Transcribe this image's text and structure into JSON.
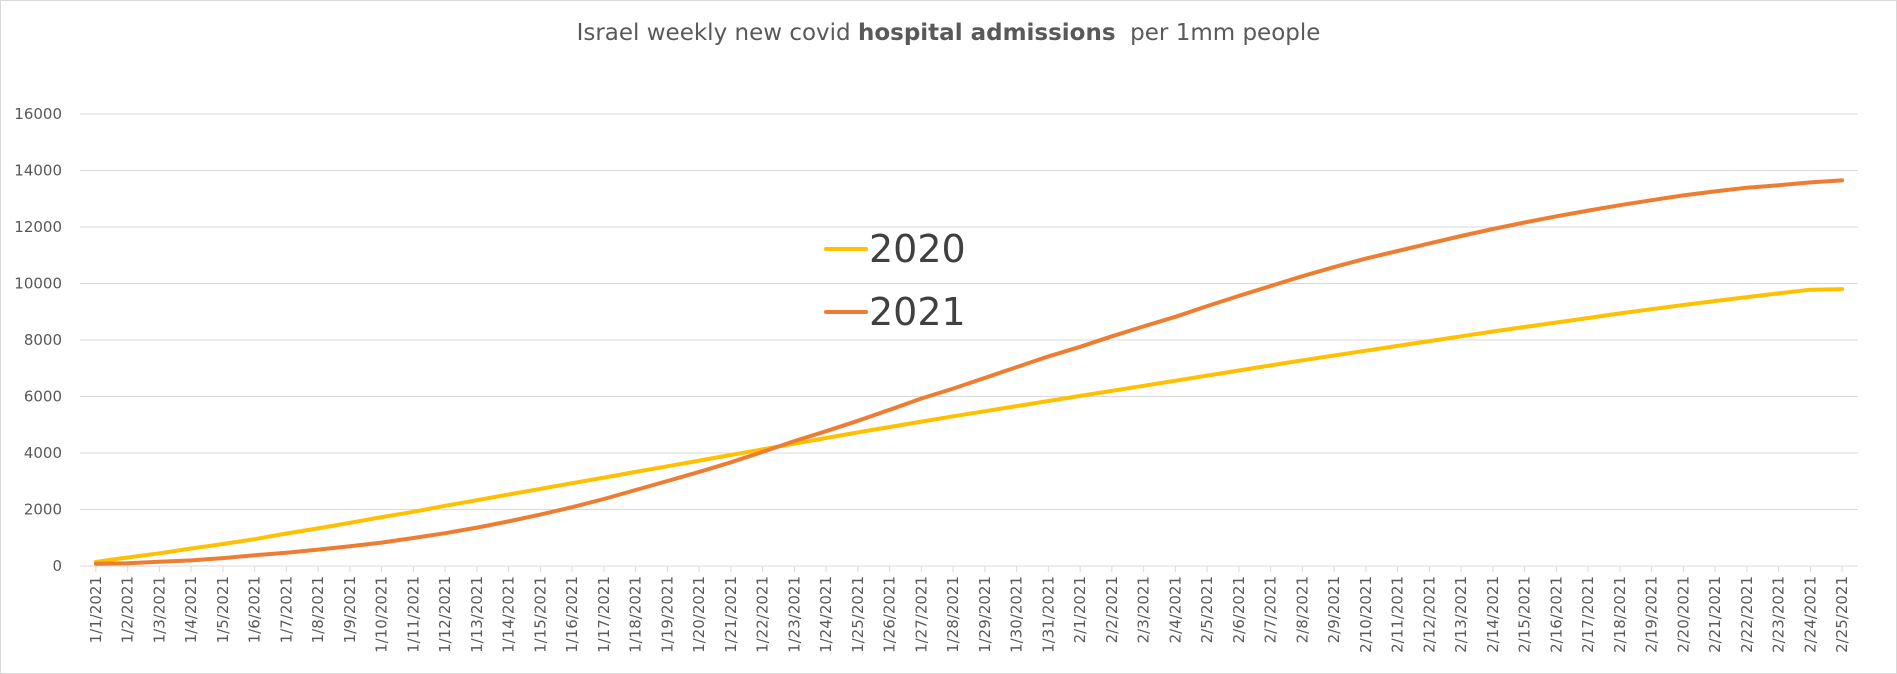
{
  "chart_data": {
    "type": "line",
    "title": {
      "before": "Israel weekly new covid ",
      "bold": "hospital admissions",
      "after": "  per 1mm people"
    },
    "xlabel": "",
    "ylabel": "",
    "ylim": [
      0,
      16000
    ],
    "yticks": [
      0,
      2000,
      4000,
      6000,
      8000,
      10000,
      12000,
      14000,
      16000
    ],
    "grid": true,
    "legend_placement": "center-left",
    "x": [
      "1/1/2021",
      "1/2/2021",
      "1/3/2021",
      "1/4/2021",
      "1/5/2021",
      "1/6/2021",
      "1/7/2021",
      "1/8/2021",
      "1/9/2021",
      "1/10/2021",
      "1/11/2021",
      "1/12/2021",
      "1/13/2021",
      "1/14/2021",
      "1/15/2021",
      "1/16/2021",
      "1/17/2021",
      "1/18/2021",
      "1/19/2021",
      "1/20/2021",
      "1/21/2021",
      "1/22/2021",
      "1/23/2021",
      "1/24/2021",
      "1/25/2021",
      "1/26/2021",
      "1/27/2021",
      "1/28/2021",
      "1/29/2021",
      "1/30/2021",
      "1/31/2021",
      "2/1/2021",
      "2/2/2021",
      "2/3/2021",
      "2/4/2021",
      "2/5/2021",
      "2/6/2021",
      "2/7/2021",
      "2/8/2021",
      "2/9/2021",
      "2/10/2021",
      "2/11/2021",
      "2/12/2021",
      "2/13/2021",
      "2/14/2021",
      "2/15/2021",
      "2/16/2021",
      "2/17/2021",
      "2/18/2021",
      "2/19/2021",
      "2/20/2021",
      "2/21/2021",
      "2/22/2021",
      "2/23/2021",
      "2/24/2021",
      "2/25/2021"
    ],
    "series": [
      {
        "name": "2020",
        "color": "#FFC000",
        "values": [
          150,
          300,
          450,
          620,
          780,
          950,
          1150,
          1330,
          1530,
          1730,
          1920,
          2130,
          2330,
          2530,
          2730,
          2930,
          3130,
          3330,
          3530,
          3730,
          3930,
          4130,
          4330,
          4530,
          4730,
          4920,
          5110,
          5300,
          5480,
          5660,
          5840,
          6020,
          6200,
          6380,
          6560,
          6740,
          6920,
          7100,
          7280,
          7450,
          7620,
          7790,
          7960,
          8130,
          8300,
          8460,
          8620,
          8780,
          8940,
          9090,
          9240,
          9380,
          9520,
          9650,
          9780,
          9800
        ]
      },
      {
        "name": "2021",
        "color": "#ED7D31",
        "values": [
          80,
          100,
          150,
          200,
          280,
          380,
          470,
          580,
          700,
          830,
          990,
          1160,
          1360,
          1580,
          1820,
          2080,
          2370,
          2690,
          3010,
          3330,
          3670,
          4040,
          4420,
          4770,
          5140,
          5530,
          5930,
          6280,
          6660,
          7040,
          7420,
          7760,
          8130,
          8480,
          8820,
          9200,
          9560,
          9910,
          10260,
          10580,
          10880,
          11150,
          11420,
          11680,
          11930,
          12160,
          12380,
          12580,
          12770,
          12950,
          13120,
          13260,
          13390,
          13480,
          13580,
          13650
        ]
      }
    ]
  }
}
